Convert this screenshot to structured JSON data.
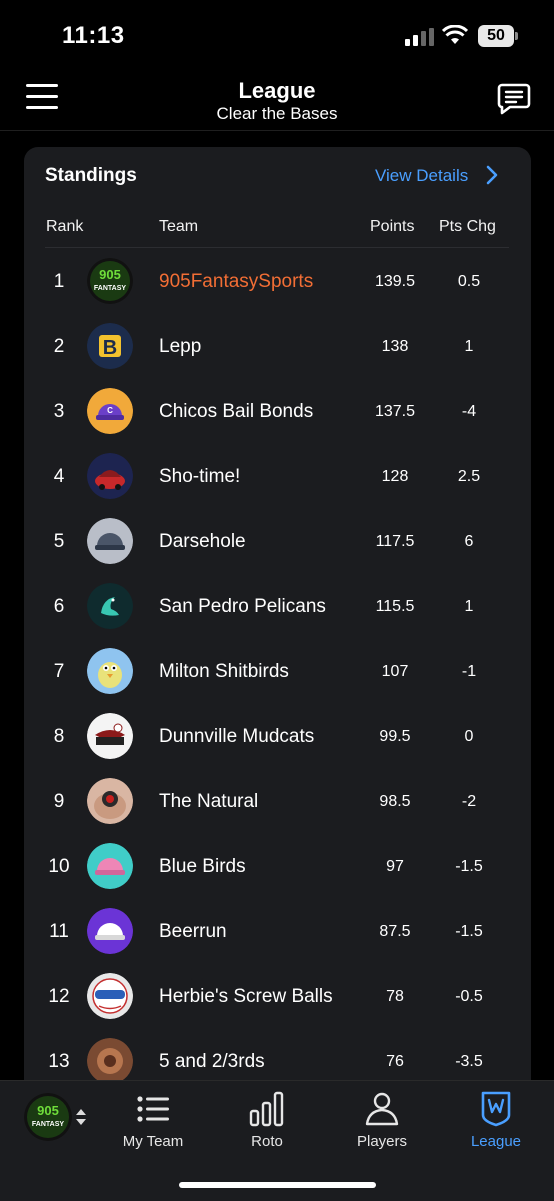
{
  "status": {
    "time": "11:13",
    "battery": "50"
  },
  "header": {
    "title": "League",
    "subtitle": "Clear the Bases"
  },
  "standings": {
    "title": "Standings",
    "view_details": "View Details",
    "columns": {
      "rank": "Rank",
      "team": "Team",
      "points": "Points",
      "pts_chg": "Pts Chg"
    },
    "rows": [
      {
        "rank": "1",
        "team": "905FantasySports",
        "points": "139.5",
        "pts_chg": "0.5",
        "logo": "905-fantasy-logo",
        "mine": true
      },
      {
        "rank": "2",
        "team": "Lepp",
        "points": "138",
        "pts_chg": "1",
        "logo": "letter-b-logo"
      },
      {
        "rank": "3",
        "team": "Chicos Bail Bonds",
        "points": "137.5",
        "pts_chg": "-4",
        "logo": "purple-cap-logo"
      },
      {
        "rank": "4",
        "team": "Sho-time!",
        "points": "128",
        "pts_chg": "2.5",
        "logo": "red-car-logo"
      },
      {
        "rank": "5",
        "team": "Darsehole",
        "points": "117.5",
        "pts_chg": "6",
        "logo": "gray-cap-logo"
      },
      {
        "rank": "6",
        "team": "San Pedro Pelicans",
        "points": "115.5",
        "pts_chg": "1",
        "logo": "pelican-logo"
      },
      {
        "rank": "7",
        "team": "Milton Shitbirds",
        "points": "107",
        "pts_chg": "-1",
        "logo": "cartoon-bird-logo"
      },
      {
        "rank": "8",
        "team": "Dunnville Mudcats",
        "points": "99.5",
        "pts_chg": "0",
        "logo": "mudcats-logo"
      },
      {
        "rank": "9",
        "team": "The Natural",
        "points": "98.5",
        "pts_chg": "-2",
        "logo": "ring-photo-logo"
      },
      {
        "rank": "10",
        "team": "Blue Birds",
        "points": "97",
        "pts_chg": "-1.5",
        "logo": "pink-cap-logo"
      },
      {
        "rank": "11",
        "team": "Beerrun",
        "points": "87.5",
        "pts_chg": "-1.5",
        "logo": "white-cap-purple-logo"
      },
      {
        "rank": "12",
        "team": "Herbie's Screw Balls",
        "points": "78",
        "pts_chg": "-0.5",
        "logo": "screwballs-logo"
      },
      {
        "rank": "13",
        "team": "5 and 2/3rds",
        "points": "76",
        "pts_chg": "-3.5",
        "logo": "bronze-ring-logo"
      }
    ]
  },
  "tabbar": {
    "items": [
      {
        "label": "My Team",
        "icon": "list-icon"
      },
      {
        "label": "Roto",
        "icon": "bar-chart-icon"
      },
      {
        "label": "Players",
        "icon": "person-icon"
      },
      {
        "label": "League",
        "icon": "shield-icon",
        "active": true
      }
    ]
  },
  "colors": {
    "accent": "#4a9fff",
    "my_team": "#f26e35",
    "card_bg": "#1b1c1f"
  }
}
